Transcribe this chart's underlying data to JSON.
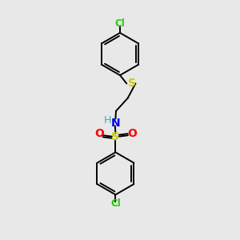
{
  "bg_color": "#e8e8e8",
  "atom_colors": {
    "Cl": "#22cc00",
    "S_sulfanyl": "#cccc00",
    "S_sulfonyl": "#cccc00",
    "N": "#0000ee",
    "O": "#ff0000",
    "bond": "#000000"
  },
  "figsize": [
    3.0,
    3.0
  ],
  "dpi": 100,
  "xlim": [
    0,
    10
  ],
  "ylim": [
    0,
    10
  ]
}
